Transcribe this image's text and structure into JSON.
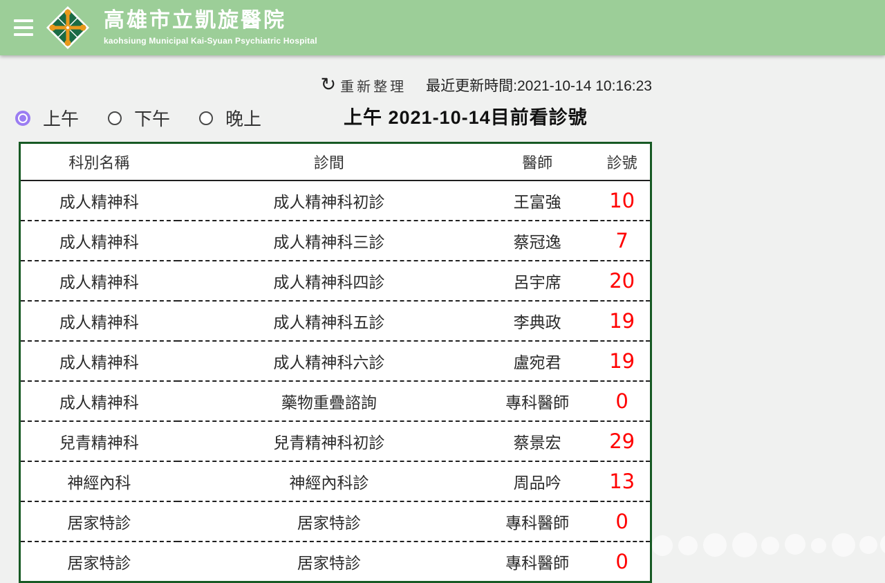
{
  "header": {
    "title": "高雄市立凱旋醫院",
    "subtitle": "kaohsiung Municipal Kai-Syuan Psychiatric Hospital",
    "bg_color": "#9cce98"
  },
  "toolbar": {
    "refresh_label": "重新整理",
    "refresh_icon_glyph": "↻",
    "last_update_label": "最近更新時間:2021-10-14 10:16:23"
  },
  "session_selector": {
    "options": [
      {
        "label": "上午",
        "selected": true
      },
      {
        "label": "下午",
        "selected": false
      },
      {
        "label": "晚上",
        "selected": false
      }
    ],
    "selected_color": "#9b7df2"
  },
  "main": {
    "title": "上午 2021-10-14目前看診號"
  },
  "table": {
    "border_color": "#175a24",
    "number_color": "#ff0000",
    "columns": [
      "科別名稱",
      "診間",
      "醫師",
      "診號"
    ],
    "rows": [
      {
        "dept": "成人精神科",
        "room": "成人精神科初診",
        "doctor": "王富強",
        "number": "10"
      },
      {
        "dept": "成人精神科",
        "room": "成人精神科三診",
        "doctor": "蔡冠逸",
        "number": "7"
      },
      {
        "dept": "成人精神科",
        "room": "成人精神科四診",
        "doctor": "呂宇席",
        "number": "20"
      },
      {
        "dept": "成人精神科",
        "room": "成人精神科五診",
        "doctor": "李典政",
        "number": "19"
      },
      {
        "dept": "成人精神科",
        "room": "成人精神科六診",
        "doctor": "盧宛君",
        "number": "19"
      },
      {
        "dept": "成人精神科",
        "room": "藥物重疊諮詢",
        "doctor": "專科醫師",
        "number": "0"
      },
      {
        "dept": "兒青精神科",
        "room": "兒青精神科初診",
        "doctor": "蔡景宏",
        "number": "29"
      },
      {
        "dept": "神經內科",
        "room": "神經內科診",
        "doctor": "周品吟",
        "number": "13"
      },
      {
        "dept": "居家特診",
        "room": "居家特診",
        "doctor": "專科醫師",
        "number": "0"
      },
      {
        "dept": "居家特診",
        "room": "居家特診",
        "doctor": "專科醫師",
        "number": "0"
      }
    ]
  }
}
